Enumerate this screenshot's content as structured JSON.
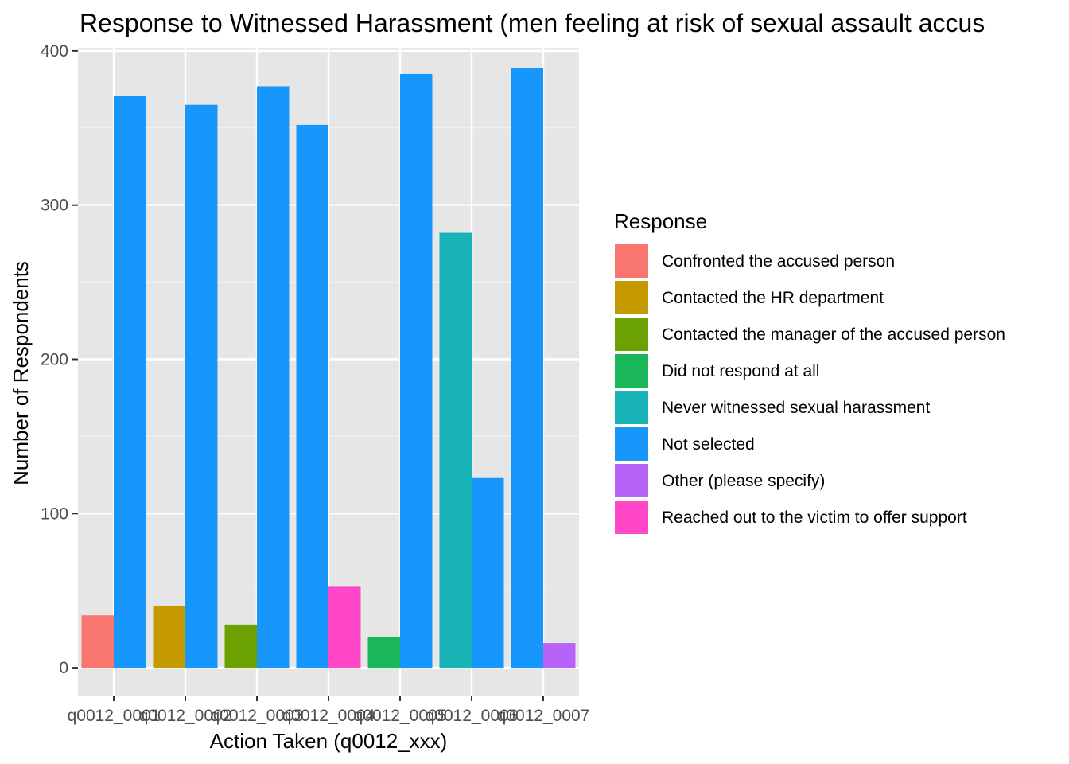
{
  "chart_data": {
    "type": "bar",
    "title": "Response to Witnessed Harassment (men feeling at risk of sexual assault accus",
    "xlabel": "Action Taken (q0012_xxx)",
    "ylabel": "Number of Respondents",
    "ylim": [
      -18,
      402
    ],
    "yticks": [
      0,
      100,
      200,
      300,
      400
    ],
    "grid": true,
    "legend_position": "right",
    "legend_title": "Response",
    "categories": [
      "q0012_0001",
      "q0012_0002",
      "q0012_0003",
      "q0012_0004",
      "q0012_0005",
      "q0012_0006",
      "q0012_0007"
    ],
    "series": [
      {
        "name": "Confronted the accused person",
        "color": "#F8766D",
        "values": [
          34,
          null,
          null,
          null,
          null,
          null,
          null
        ]
      },
      {
        "name": "Contacted the HR department",
        "color": "#C49A00",
        "values": [
          null,
          40,
          null,
          null,
          null,
          null,
          null
        ]
      },
      {
        "name": "Contacted the manager of the accused person",
        "color": "#53B400",
        "values": [
          null,
          null,
          28,
          null,
          null,
          null,
          null
        ]
      },
      {
        "name": "Did not respond at all",
        "color": "#00C094",
        "values": [
          null,
          null,
          null,
          null,
          20,
          null,
          null
        ]
      },
      {
        "name": "Never witnessed sexual harassment",
        "color": "#00B6EB",
        "values": [
          null,
          null,
          null,
          null,
          null,
          282,
          null
        ]
      },
      {
        "name": "Not selected",
        "color": "#A58AFF",
        "values": [
          371,
          365,
          377,
          352,
          385,
          123,
          389
        ]
      },
      {
        "name": "Other (please specify)",
        "color": "#FB61D7",
        "values": [
          null,
          null,
          null,
          null,
          null,
          null,
          16
        ]
      },
      {
        "name": "Reached out to the victim to offer support",
        "color": "#FF61C3",
        "values": [
          null,
          null,
          null,
          53,
          null,
          null,
          null
        ]
      }
    ],
    "bar_colors": {
      "Confronted the accused person": "#F8766D",
      "Contacted the HR department": "#C49A00",
      "Contacted the manager of the accused person": "#6BA100",
      "Did not respond at all": "#19B65A",
      "Never witnessed sexual harassment": "#17B3B7",
      "Not selected": "#1796FC",
      "Other (please specify)": "#B863F8",
      "Reached out to the victim to offer support": "#FF47C7"
    },
    "panel_background": "#E6E6E6"
  }
}
